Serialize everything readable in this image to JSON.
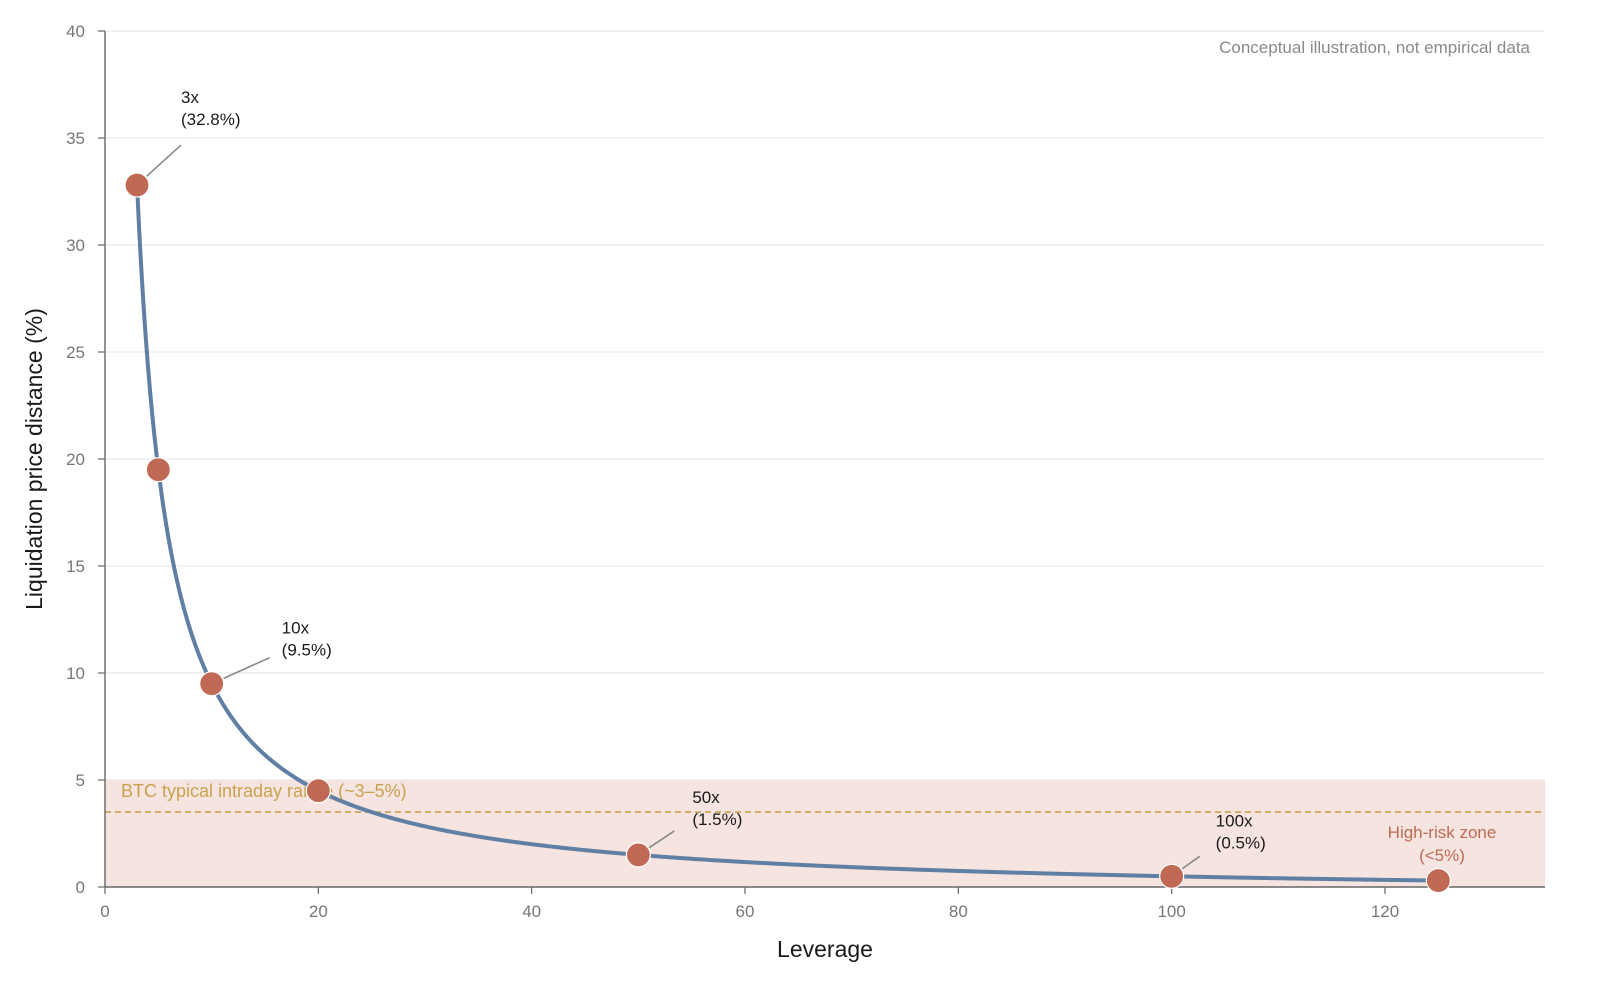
{
  "chart_data": {
    "type": "line",
    "xlabel": "Leverage",
    "ylabel": "Liquidation price distance (%)",
    "xlim": [
      0,
      135
    ],
    "ylim": [
      0,
      40
    ],
    "x_ticks": [
      0,
      20,
      40,
      60,
      80,
      100,
      120
    ],
    "y_ticks": [
      0,
      5,
      10,
      15,
      20,
      25,
      30,
      35,
      40
    ],
    "grid": "horizontal",
    "note": "Conceptual illustration, not empirical data",
    "series": [
      {
        "kind": "curve",
        "color": "#5f7fa4",
        "x_range": [
          3,
          125
        ]
      },
      {
        "kind": "points",
        "color": "#c06a55",
        "x": [
          3,
          5,
          10,
          20,
          50,
          100,
          125
        ],
        "y": [
          32.8,
          19.5,
          9.5,
          4.5,
          1.5,
          0.5,
          0.3
        ]
      }
    ],
    "annotations": [
      {
        "x": 3,
        "y": 32.8,
        "line1": "3x",
        "line2": "(32.8%)"
      },
      {
        "x": 10,
        "y": 9.5,
        "line1": "10x",
        "line2": "(9.5%)"
      },
      {
        "x": 50,
        "y": 1.5,
        "line1": "50x",
        "line2": "(1.5%)"
      },
      {
        "x": 100,
        "y": 0.5,
        "line1": "100x",
        "line2": "(0.5%)"
      }
    ],
    "high_risk_zone": {
      "y_range": [
        0,
        5
      ],
      "color": "#f5e4e0",
      "label_line1": "High-risk zone",
      "label_line2": "(<5%)",
      "label_color": "#c06a55"
    },
    "intraday_band": {
      "y": 3.5,
      "color": "#c9a24e",
      "label": "BTC typical intraday range (~3–5%)"
    }
  }
}
